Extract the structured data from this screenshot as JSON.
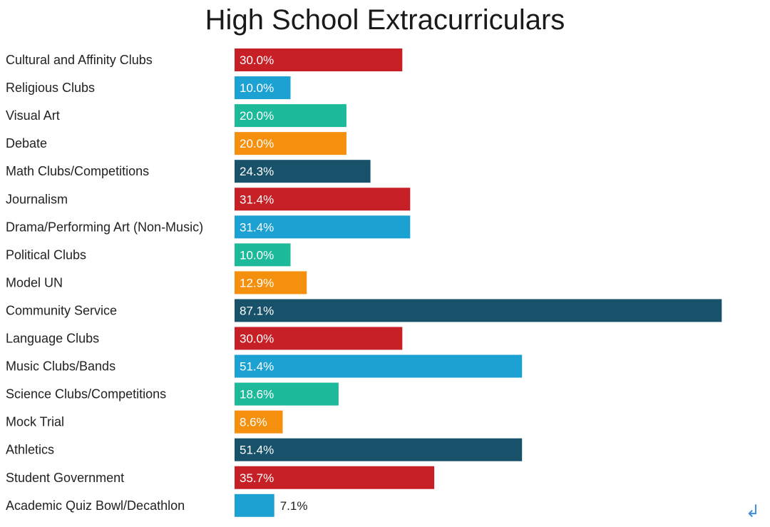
{
  "chart_data": {
    "type": "bar",
    "orientation": "horizontal",
    "title": "High School Extracurriculars",
    "categories": [
      "Cultural and Affinity Clubs",
      "Religious Clubs",
      "Visual Art",
      "Debate",
      "Math Clubs/Competitions",
      "Journalism",
      "Drama/Performing Art (Non-Music)",
      "Political Clubs",
      "Model UN",
      "Community Service",
      "Language Clubs",
      "Music Clubs/Bands",
      "Science Clubs/Competitions",
      "Mock Trial",
      "Athletics",
      "Student Government",
      "Academic Quiz Bowl/Decathlon"
    ],
    "values": [
      30.0,
      10.0,
      20.0,
      20.0,
      24.3,
      31.4,
      31.4,
      10.0,
      12.9,
      87.1,
      30.0,
      51.4,
      18.6,
      8.6,
      51.4,
      35.7,
      7.1
    ],
    "value_labels": [
      "30.0%",
      "10.0%",
      "20.0%",
      "20.0%",
      "24.3%",
      "31.4%",
      "31.4%",
      "10.0%",
      "12.9%",
      "87.1%",
      "30.0%",
      "51.4%",
      "18.6%",
      "8.6%",
      "51.4%",
      "35.7%",
      "7.1%"
    ],
    "colors": [
      "#c62026",
      "#1ca1d3",
      "#1cb99a",
      "#f5900e",
      "#17526a"
    ],
    "xlabel": "",
    "ylabel": "",
    "xlim": [
      0,
      100
    ],
    "grid": false,
    "legend": "none"
  },
  "corner_icon": "return-arrow-icon",
  "corner_glyph": "↲"
}
